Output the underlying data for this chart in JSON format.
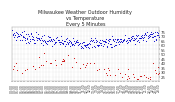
{
  "title": "Milwaukee Weather Outdoor Humidity\nvs Temperature\nEvery 5 Minutes",
  "title_fontsize": 3.5,
  "title_color": "#222222",
  "bg_color": "#ffffff",
  "plot_bg_color": "#ffffff",
  "grid_color": "#aaaaaa",
  "blue_color": "#0000cc",
  "red_color": "#cc0000",
  "ylim": [
    20,
    80
  ],
  "yticks": [
    25,
    30,
    35,
    40,
    45,
    50,
    55,
    60,
    65,
    70,
    75
  ],
  "ytick_fontsize": 2.8,
  "xtick_fontsize": 2.2,
  "marker_size": 0.6,
  "n_points": 288,
  "n_xticks": 48,
  "humidity_mean": 68,
  "humidity_std": 6,
  "temp_mean": 35,
  "temp_std": 5
}
